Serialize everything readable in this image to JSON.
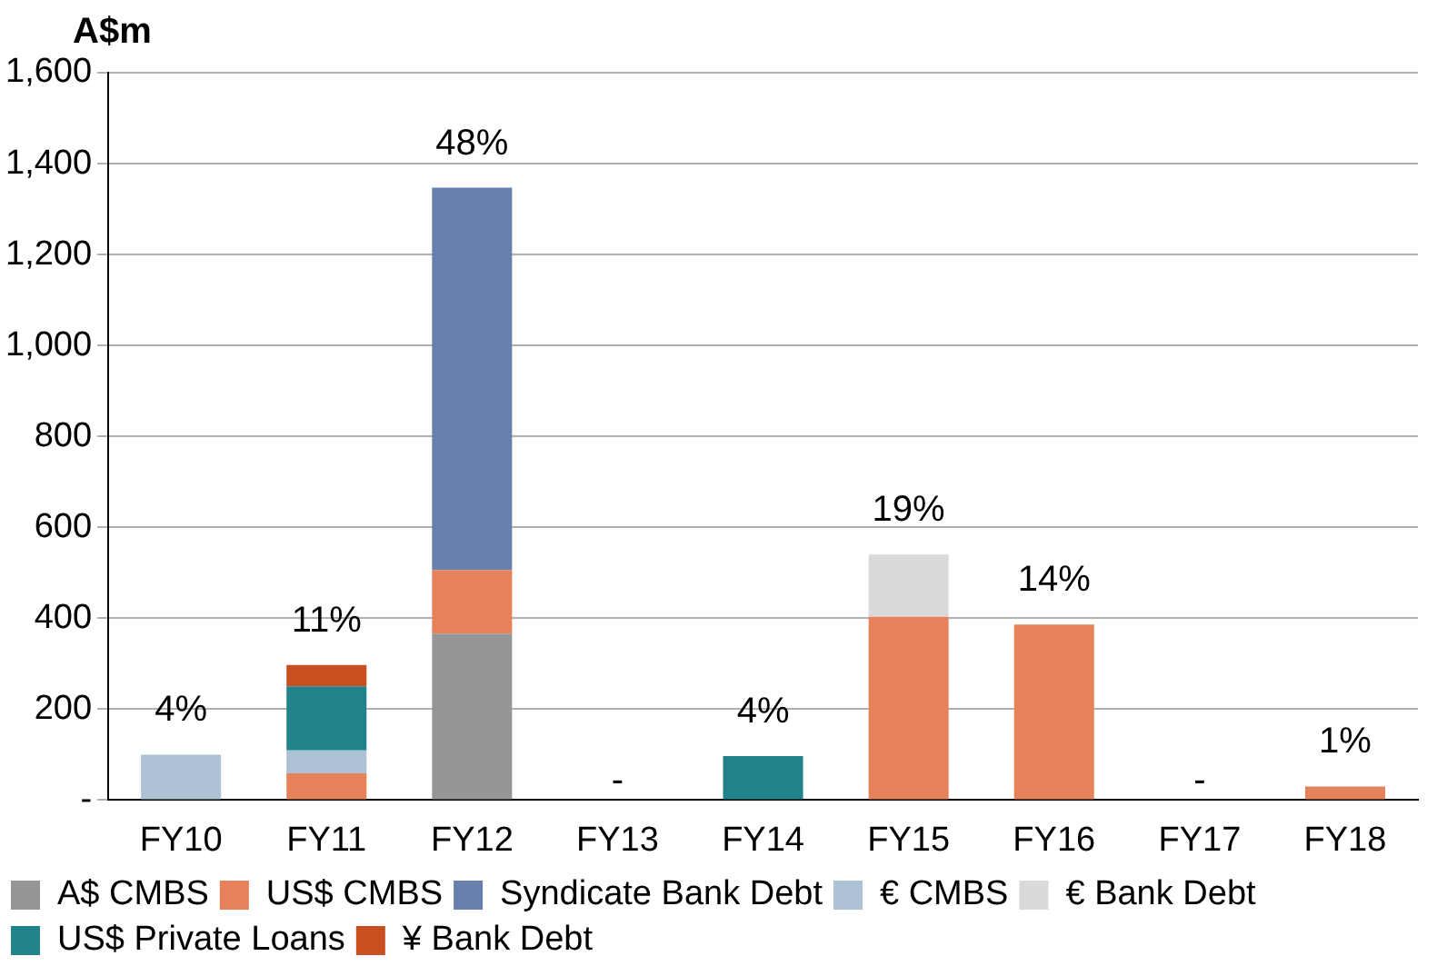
{
  "chart_data": {
    "type": "bar",
    "stacked": true,
    "ylabel": "A$m",
    "categories": [
      "FY10",
      "FY11",
      "FY12",
      "FY13",
      "FY14",
      "FY15",
      "FY16",
      "FY17",
      "FY18"
    ],
    "series": [
      {
        "name": "A$ CMBS",
        "color": "#969696",
        "values": [
          null,
          null,
          366,
          null,
          null,
          null,
          null,
          null,
          null
        ]
      },
      {
        "name": "US$ CMBS",
        "color": "#e5825b",
        "values": [
          null,
          59,
          140,
          null,
          null,
          403,
          386,
          null,
          30
        ]
      },
      {
        "name": "Syndicate Bank Debt",
        "color": "#6880ab",
        "values": [
          null,
          null,
          841,
          null,
          null,
          null,
          null,
          null,
          null
        ]
      },
      {
        "name": "€ CMBS",
        "color": "#adc2d4",
        "values": [
          100,
          50,
          null,
          null,
          null,
          null,
          null,
          null,
          null
        ]
      },
      {
        "name": "€ Bank Debt",
        "color": "#dadada",
        "values": [
          null,
          null,
          null,
          null,
          null,
          137,
          null,
          null,
          null
        ]
      },
      {
        "name": "US$ Private Loans",
        "color": "#20838a",
        "values": [
          null,
          141,
          null,
          null,
          97,
          null,
          null,
          null,
          null
        ]
      },
      {
        "name": "¥ Bank Debt",
        "color": "#c84f20",
        "values": [
          null,
          47,
          null,
          null,
          null,
          null,
          null,
          null,
          null
        ]
      }
    ],
    "ylim": [
      0,
      1600
    ],
    "yticks": [
      {
        "value": 0,
        "label": "-"
      },
      200,
      400,
      600,
      800,
      {
        "value": 1000,
        "label": "1,000"
      },
      {
        "value": 1200,
        "label": "1,200"
      },
      {
        "value": 1400,
        "label": "1,400"
      },
      {
        "value": 1600,
        "label": "1,600"
      }
    ],
    "grid": "y",
    "legend": "bottom",
    "annotations": [
      {
        "text": "4%",
        "x": "FY10",
        "y": 100
      },
      {
        "text": "11%",
        "x": "FY11",
        "y": 297
      },
      {
        "text": "48%",
        "x": "FY12",
        "y": 1347
      },
      "-",
      {
        "text": "4%",
        "x": "FY14",
        "y": 97
      },
      {
        "text": "19%",
        "x": "FY15",
        "y": 540
      },
      {
        "text": "14%",
        "x": "FY16",
        "y": 386
      },
      "-",
      {
        "text": "1%",
        "x": "FY18",
        "y": 30
      }
    ]
  }
}
